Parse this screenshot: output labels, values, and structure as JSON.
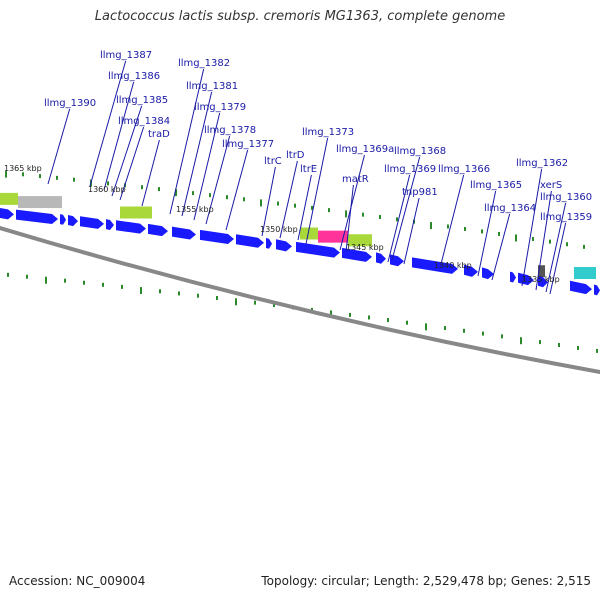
{
  "title": "Lactococcus lactis subsp. cremoris MG1363, complete genome",
  "footer": {
    "accession_label": "Accession:",
    "accession": "NC_009004",
    "topology": "Topology: circular; Length: 2,529,478 bp; Genes: 2,515"
  },
  "colors": {
    "gene": "#1a1aff",
    "label": "#1a1aa6",
    "tick": "#2a8a2a",
    "backbone": "#888888",
    "feature_green": "#a8d83a",
    "feature_grey": "#b8b8b8",
    "feature_pink": "#ff3399",
    "feature_cyan": "#33cccc"
  },
  "scale_labels": [
    "1365 kbp",
    "1360 kbp",
    "1355 kbp",
    "1350 kbp",
    "1345 kbp",
    "1340 kbp",
    "1335 kbp"
  ],
  "gene_labels": [
    "llmg_1390",
    "llmg_1387",
    "llmg_1386",
    "llmg_1385",
    "llmg_1384",
    "traD",
    "llmg_1382",
    "llmg_1381",
    "llmg_1379",
    "llmg_1378",
    "llmg_1377",
    "ltrC",
    "ltrD",
    "ltrE",
    "llmg_1373",
    "llmg_1369a",
    "matR",
    "llmg_1368",
    "llmg_1369",
    "tnp981",
    "llmg_1366",
    "llmg_1365",
    "llmg_1364",
    "llmg_1362",
    "xerS",
    "llmg_1360",
    "llmg_1359"
  ]
}
